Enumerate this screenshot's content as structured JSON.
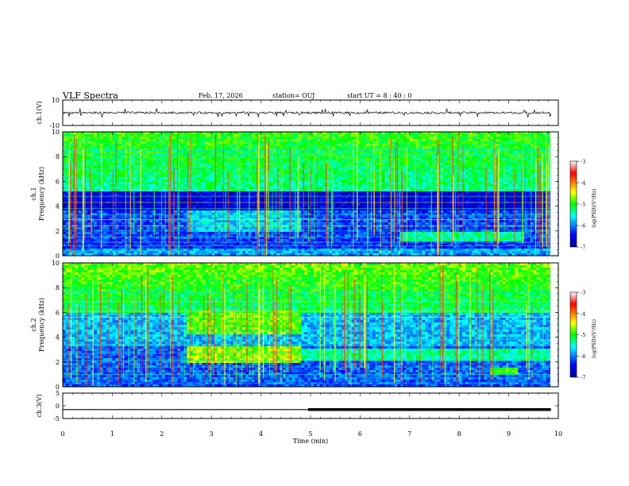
{
  "header": {
    "title": "VLF Spectra",
    "date": "Feb. 17, 2026",
    "station": "station= OUJ",
    "start": "start  UT  =   8  : 40 : 0"
  },
  "chart_data": [
    {
      "type": "line",
      "name": "ch1-waveform",
      "ylabel": "ch.1(V)",
      "ylim": [
        -10,
        10
      ],
      "yticks": [
        "10",
        "-10"
      ],
      "xlim": [
        0,
        10
      ],
      "description_values": {
        "baseline": 0,
        "spike_max": 3.5
      }
    },
    {
      "type": "heatmap",
      "name": "ch1-spectrogram",
      "ylabel": "ch.1",
      "ylabel2": "Frequency (kHz)",
      "ylim": [
        0,
        10
      ],
      "yticks": [
        "0",
        "2",
        "4",
        "6",
        "8",
        "10"
      ],
      "xlim": [
        0,
        10
      ],
      "colorbar": {
        "label": "log(PSD)(V²/Hz)",
        "range": [
          -7,
          -3
        ],
        "ticks": [
          "-3",
          "-4",
          "-5",
          "-6",
          "-7"
        ]
      }
    },
    {
      "type": "heatmap",
      "name": "ch2-spectrogram",
      "ylabel": "ch.2",
      "ylabel2": "Frequency (kHz)",
      "ylim": [
        0,
        10
      ],
      "yticks": [
        "0",
        "2",
        "4",
        "6",
        "8",
        "10"
      ],
      "xlim": [
        0,
        10
      ],
      "colorbar": {
        "label": "log(PSD)(V²/Hz)",
        "range": [
          -7,
          -3
        ],
        "ticks": [
          "-3",
          "-4",
          "-5",
          "-6",
          "-7"
        ]
      }
    },
    {
      "type": "line",
      "name": "ch3-signal",
      "ylabel": "ch.3(V)",
      "ylim": [
        -5,
        5
      ],
      "yticks": [
        "5",
        "0",
        "-5"
      ],
      "xlim": [
        0,
        10
      ],
      "xlabel": "Time (min)",
      "xticks": [
        "0",
        "1",
        "2",
        "3",
        "4",
        "5",
        "6",
        "7",
        "8",
        "9",
        "10"
      ],
      "x": [
        0,
        4.95,
        4.95,
        9.85
      ],
      "y": [
        -1.5,
        -1.5,
        -1.5,
        -1.5
      ]
    }
  ]
}
